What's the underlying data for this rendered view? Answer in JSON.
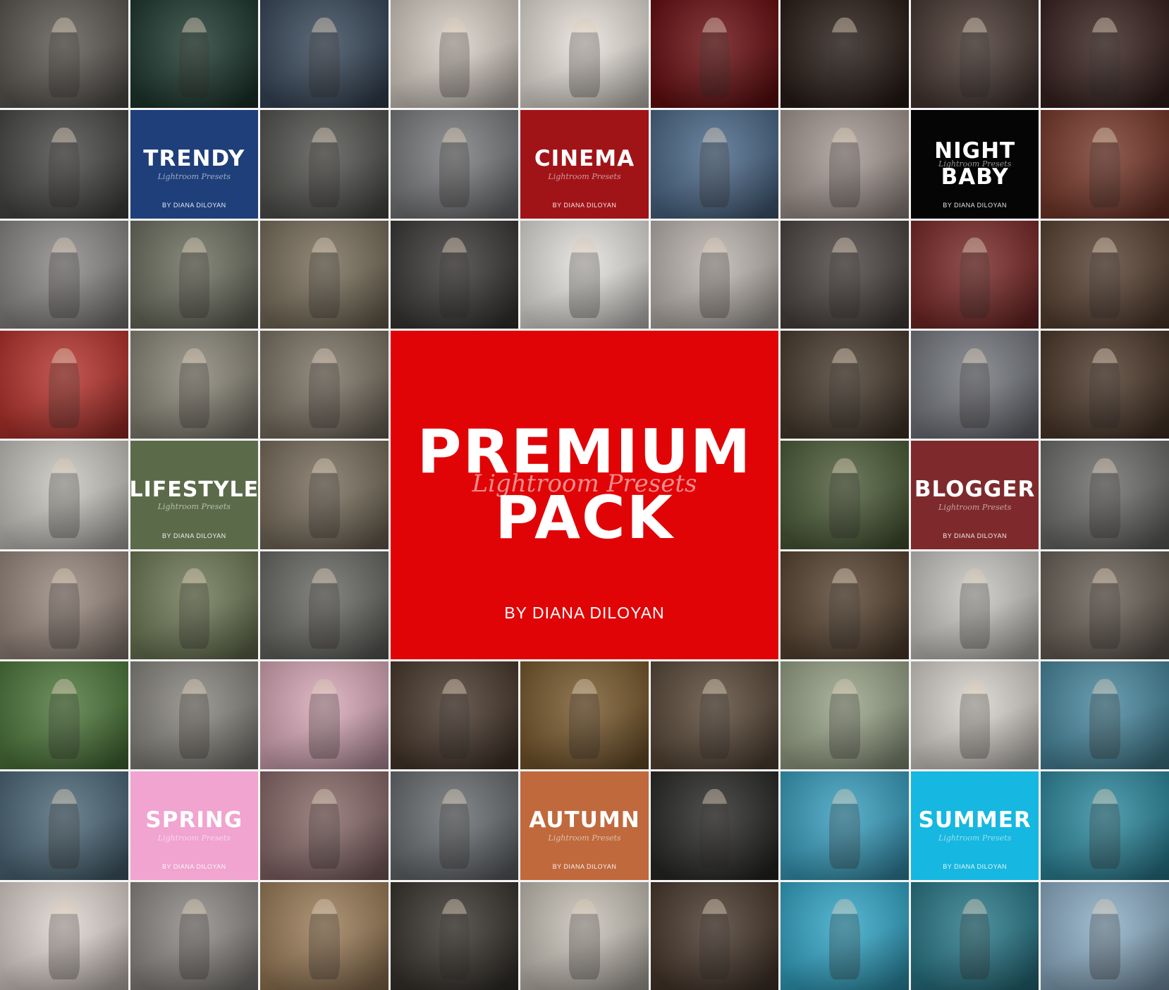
{
  "hero": {
    "title_line1": "PREMIUM",
    "script": "Lightroom Presets",
    "title_line2": "PACK",
    "byline": "BY DIANA DILOYAN",
    "color": "#e10406"
  },
  "covers": [
    {
      "id": "trendy",
      "line1": "TRENDY",
      "line2": "",
      "script": "Lightroom Presets",
      "byline": "BY DIANA DILOYAN",
      "color": "#1e3f7a"
    },
    {
      "id": "cinema",
      "line1": "CINEMA",
      "line2": "",
      "script": "Lightroom Presets",
      "byline": "BY DIANA DILOYAN",
      "color": "#a01418"
    },
    {
      "id": "night-baby",
      "line1": "NIGHT",
      "line2": "BABY",
      "script": "Lightroom Presets",
      "byline": "BY DIANA DILOYAN",
      "color": "#050505"
    },
    {
      "id": "lifestyle",
      "line1": "LIFESTYLE",
      "line2": "",
      "script": "Lightroom Presets",
      "byline": "BY DIANA DILOYAN",
      "color": "#5b6b4a"
    },
    {
      "id": "blogger",
      "line1": "BLOGGER",
      "line2": "",
      "script": "Lightroom Presets",
      "byline": "BY DIANA DILOYAN",
      "color": "#7e2a2d"
    },
    {
      "id": "spring",
      "line1": "SPRING",
      "line2": "",
      "script": "Lightroom Presets",
      "byline": "BY DIANA DILOYAN",
      "color": "#f0a4cf"
    },
    {
      "id": "autumn",
      "line1": "AUTUMN",
      "line2": "",
      "script": "Lightroom Presets",
      "byline": "BY DIANA DILOYAN",
      "color": "#c0693d"
    },
    {
      "id": "summer",
      "line1": "SUMMER",
      "line2": "",
      "script": "Lightroom Presets",
      "byline": "BY DIANA DILOYAN",
      "color": "#16b7e0"
    }
  ],
  "photo_tiles": {
    "r1": [
      "#5e5a55",
      "#1f3a30",
      "#3a4a5c",
      "#d8cfc6",
      "#e8e2da",
      "#6b0f12",
      "#2a1e18",
      "#4a3a34",
      "#3a2420"
    ],
    "r2": [
      "#4a4a48",
      "#545451",
      "#7b7c7f",
      "#4d6a8a",
      "#a79a94",
      "#7a3a2c"
    ],
    "r3": [
      "#8c8a88",
      "#6e7061",
      "#7a6f5c",
      "#3c3a38",
      "#e4e2de",
      "#bdb6b0",
      "#4d4643",
      "#7a2a28",
      "#5a4334"
    ],
    "r4": [
      "#b8342e",
      "#8a8678",
      "#7d7466",
      "#4a3d30",
      "#767980",
      "#4e3a2c"
    ],
    "r5": [
      "#c9c7c1",
      "#7a6f5e",
      "#4e5e3a",
      "#6e6e6c"
    ],
    "r6": [
      "#9a8a80",
      "#6f7a57",
      "#6a6a66",
      "#5a4634",
      "#c8c7c2",
      "#6b6258"
    ],
    "r7": [
      "#4f7a3d",
      "#8a8780",
      "#d9aab9",
      "#4a3a2e",
      "#7a5a2e",
      "#5b4a3a",
      "#9aa58a",
      "#d8d4ce",
      "#4a8aa0"
    ],
    "r8": [
      "#4e6a7a",
      "#8a6b6a",
      "#6a6e72",
      "#2a2a28",
      "#3aa0c0",
      "#2f8ba0"
    ],
    "r9": [
      "#e0d6d0",
      "#8e8a86",
      "#9d7e5a",
      "#3a3630",
      "#c8c2b8",
      "#4a3a2e",
      "#34a8c8",
      "#2a7a8a",
      "#8fb0c8"
    ]
  }
}
